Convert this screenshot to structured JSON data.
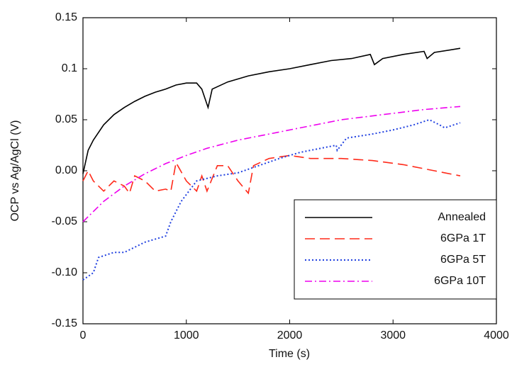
{
  "chart_data": {
    "type": "line",
    "xlabel": "Time (s)",
    "ylabel": "OCP vs Ag/AgCl (V)",
    "xlim": [
      0,
      4000
    ],
    "xticks": [
      0,
      1000,
      2000,
      3000,
      4000
    ],
    "ylim": [
      -0.15,
      0.15
    ],
    "yticks": [
      -0.15,
      {
        "value": -0.1,
        "label": "-0.10"
      },
      -0.05,
      {
        "value": 0,
        "label": "0.00"
      },
      0.05,
      0.1,
      0.15
    ],
    "legend": "lower right",
    "series": [
      {
        "name": "Annealed",
        "color": "#000000",
        "style": "solid",
        "x": [
          0,
          50,
          100,
          200,
          300,
          400,
          500,
          600,
          700,
          800,
          900,
          1000,
          1100,
          1150,
          1210,
          1250,
          1400,
          1600,
          1800,
          2000,
          2200,
          2400,
          2600,
          2780,
          2820,
          2900,
          3100,
          3300,
          3330,
          3400,
          3650
        ],
        "values": [
          -0.003,
          0.02,
          0.03,
          0.045,
          0.055,
          0.062,
          0.068,
          0.073,
          0.077,
          0.08,
          0.084,
          0.086,
          0.086,
          0.08,
          0.062,
          0.08,
          0.087,
          0.093,
          0.097,
          0.1,
          0.104,
          0.108,
          0.11,
          0.114,
          0.104,
          0.11,
          0.114,
          0.117,
          0.11,
          0.116,
          0.12
        ]
      },
      {
        "name": "6GPa 1T",
        "color": "#ff2a1a",
        "style": "dashed",
        "x": [
          0,
          50,
          100,
          200,
          300,
          400,
          450,
          500,
          600,
          700,
          800,
          850,
          900,
          1000,
          1100,
          1150,
          1200,
          1300,
          1400,
          1500,
          1600,
          1650,
          1800,
          2000,
          2200,
          2500,
          2800,
          3100,
          3400,
          3650
        ],
        "values": [
          -0.01,
          0,
          -0.01,
          -0.02,
          -0.01,
          -0.015,
          -0.022,
          -0.005,
          -0.01,
          -0.02,
          -0.018,
          -0.02,
          0.008,
          -0.01,
          -0.02,
          -0.005,
          -0.02,
          0.005,
          0.005,
          -0.01,
          -0.022,
          0.005,
          0.012,
          0.015,
          0.012,
          0.012,
          0.01,
          0.006,
          0,
          -0.005
        ]
      },
      {
        "name": "6GPa 5T",
        "color": "#2040e0",
        "style": "dotted",
        "x": [
          0,
          100,
          150,
          300,
          400,
          500,
          600,
          800,
          850,
          950,
          1100,
          1300,
          1500,
          1700,
          1900,
          2100,
          2300,
          2450,
          2460,
          2550,
          2800,
          3000,
          3200,
          3350,
          3450,
          3500,
          3650
        ],
        "values": [
          -0.107,
          -0.1,
          -0.085,
          -0.08,
          -0.08,
          -0.075,
          -0.07,
          -0.064,
          -0.05,
          -0.03,
          -0.01,
          -0.005,
          -0.002,
          0.005,
          0.012,
          0.018,
          0.022,
          0.025,
          0.02,
          0.032,
          0.036,
          0.04,
          0.045,
          0.05,
          0.045,
          0.042,
          0.047
        ]
      },
      {
        "name": "6GPa 10T",
        "color": "#ee00ee",
        "style": "dashdot",
        "x": [
          0,
          200,
          400,
          600,
          800,
          1000,
          1200,
          1500,
          1800,
          2100,
          2500,
          2900,
          3300,
          3650
        ],
        "values": [
          -0.05,
          -0.03,
          -0.015,
          -0.003,
          0.007,
          0.015,
          0.022,
          0.03,
          0.036,
          0.042,
          0.05,
          0.055,
          0.06,
          0.063
        ]
      }
    ]
  }
}
